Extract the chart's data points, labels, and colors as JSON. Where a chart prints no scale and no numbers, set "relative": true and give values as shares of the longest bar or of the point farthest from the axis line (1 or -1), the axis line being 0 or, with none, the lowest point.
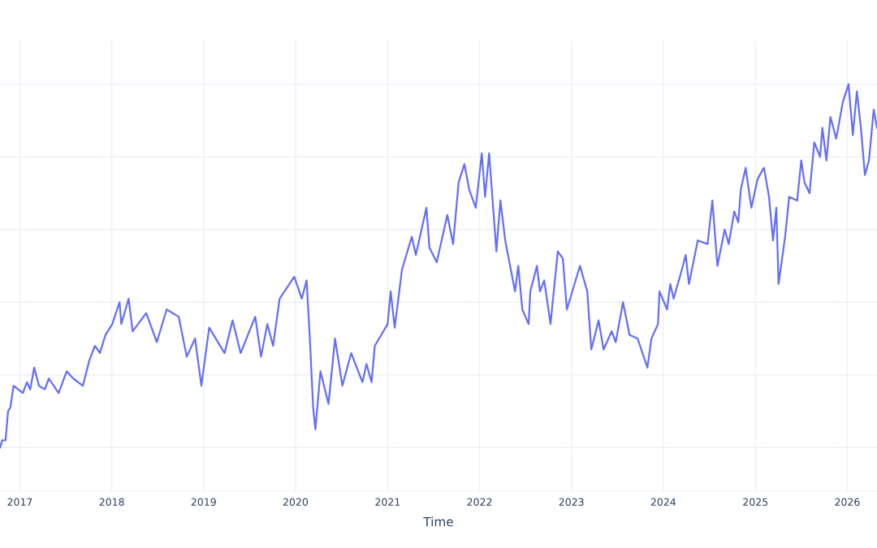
{
  "chart_data": {
    "type": "line",
    "relative": true,
    "xlabel": "Time",
    "grid": true,
    "tick_labels": "x",
    "xlim": [
      "2016-10-14",
      "2026-04-29"
    ],
    "xticks": [
      "2017",
      "2018",
      "2019",
      "2020",
      "2021",
      "2022",
      "2023",
      "2024",
      "2025",
      "2026"
    ],
    "series": [
      {
        "color": "#636efa",
        "x": [
          "2016-10-14",
          "2016-10-23",
          "2016-11-05",
          "2016-11-15",
          "2016-11-24",
          "2016-12-07",
          "2017-01-13",
          "2017-01-29",
          "2017-02-11",
          "2017-02-27",
          "2017-03-18",
          "2017-04-10",
          "2017-04-26",
          "2017-06-04",
          "2017-07-06",
          "2017-08-01",
          "2017-09-08",
          "2017-10-04",
          "2017-10-26",
          "2017-11-15",
          "2017-12-07",
          "2018-01-03",
          "2018-02-01",
          "2018-02-08",
          "2018-03-09",
          "2018-03-25",
          "2018-05-18",
          "2018-06-29",
          "2018-08-07",
          "2018-09-24",
          "2018-10-26",
          "2018-11-28",
          "2018-12-23",
          "2019-01-23",
          "2019-03-25",
          "2019-04-26",
          "2019-05-28",
          "2019-07-25",
          "2019-08-17",
          "2019-09-11",
          "2019-10-04",
          "2019-10-30",
          "2019-12-27",
          "2020-01-26",
          "2020-02-14",
          "2020-02-27",
          "2020-03-11",
          "2020-03-20",
          "2020-04-09",
          "2020-05-11",
          "2020-06-06",
          "2020-07-05",
          "2020-08-09",
          "2020-09-23",
          "2020-10-09",
          "2020-10-29",
          "2020-11-11",
          "2021-01-01",
          "2021-01-13",
          "2021-01-29",
          "2021-02-27",
          "2021-04-07",
          "2021-04-23",
          "2021-06-04",
          "2021-06-16",
          "2021-07-15",
          "2021-08-26",
          "2021-09-18",
          "2021-10-10",
          "2021-11-02",
          "2021-11-21",
          "2021-12-17",
          "2022-01-10",
          "2022-01-23",
          "2022-02-08",
          "2022-03-09",
          "2022-03-25",
          "2022-04-13",
          "2022-05-22",
          "2022-06-04",
          "2022-06-20",
          "2022-07-15",
          "2022-07-22",
          "2022-08-17",
          "2022-08-29",
          "2022-09-15",
          "2022-10-10",
          "2022-11-08",
          "2022-11-28",
          "2022-12-14",
          "2023-02-04",
          "2023-03-05",
          "2023-03-21",
          "2023-04-19",
          "2023-05-09",
          "2023-06-10",
          "2023-06-26",
          "2023-07-25",
          "2023-08-20",
          "2023-09-21",
          "2023-10-30",
          "2023-11-15",
          "2023-12-11",
          "2023-12-17",
          "2024-01-16",
          "2024-01-29",
          "2024-02-11",
          "2024-03-11",
          "2024-03-30",
          "2024-04-12",
          "2024-05-17",
          "2024-06-25",
          "2024-07-14",
          "2024-08-03",
          "2024-09-01",
          "2024-09-17",
          "2024-10-09",
          "2024-10-25",
          "2024-11-04",
          "2024-11-23",
          "2024-12-16",
          "2025-01-10",
          "2025-02-04",
          "2025-02-24",
          "2025-03-12",
          "2025-03-25",
          "2025-04-03",
          "2025-04-29",
          "2025-05-15",
          "2025-06-16",
          "2025-07-02",
          "2025-07-15",
          "2025-08-04",
          "2025-08-23",
          "2025-09-15",
          "2025-09-24",
          "2025-10-10",
          "2025-10-26",
          "2025-11-18",
          "2025-12-14",
          "2026-01-06",
          "2026-01-23",
          "2026-02-08",
          "2026-02-24",
          "2026-03-12",
          "2026-03-28",
          "2026-04-16",
          "2026-04-29"
        ],
        "values": [
          0,
          0.02,
          0.02,
          0.1,
          0.11,
          0.17,
          0.15,
          0.18,
          0.16,
          0.22,
          0.17,
          0.16,
          0.19,
          0.15,
          0.21,
          0.19,
          0.17,
          0.24,
          0.28,
          0.26,
          0.31,
          0.34,
          0.4,
          0.34,
          0.41,
          0.32,
          0.37,
          0.29,
          0.38,
          0.36,
          0.25,
          0.3,
          0.17,
          0.33,
          0.26,
          0.35,
          0.26,
          0.36,
          0.25,
          0.34,
          0.28,
          0.41,
          0.47,
          0.41,
          0.46,
          0.3,
          0.11,
          0.05,
          0.21,
          0.12,
          0.3,
          0.17,
          0.26,
          0.18,
          0.23,
          0.18,
          0.28,
          0.34,
          0.43,
          0.33,
          0.49,
          0.58,
          0.53,
          0.66,
          0.55,
          0.51,
          0.64,
          0.56,
          0.73,
          0.78,
          0.71,
          0.66,
          0.81,
          0.69,
          0.81,
          0.54,
          0.68,
          0.57,
          0.43,
          0.5,
          0.38,
          0.34,
          0.43,
          0.5,
          0.43,
          0.46,
          0.34,
          0.54,
          0.52,
          0.38,
          0.5,
          0.43,
          0.27,
          0.35,
          0.27,
          0.32,
          0.29,
          0.4,
          0.31,
          0.3,
          0.22,
          0.3,
          0.34,
          0.43,
          0.38,
          0.45,
          0.41,
          0.48,
          0.53,
          0.45,
          0.57,
          0.56,
          0.68,
          0.5,
          0.6,
          0.56,
          0.65,
          0.62,
          0.71,
          0.77,
          0.66,
          0.74,
          0.77,
          0.69,
          0.57,
          0.66,
          0.45,
          0.58,
          0.69,
          0.68,
          0.79,
          0.73,
          0.7,
          0.84,
          0.8,
          0.88,
          0.79,
          0.91,
          0.85,
          0.95,
          1,
          0.86,
          0.98,
          0.88,
          0.75,
          0.79,
          0.93,
          0.88
        ]
      }
    ]
  }
}
